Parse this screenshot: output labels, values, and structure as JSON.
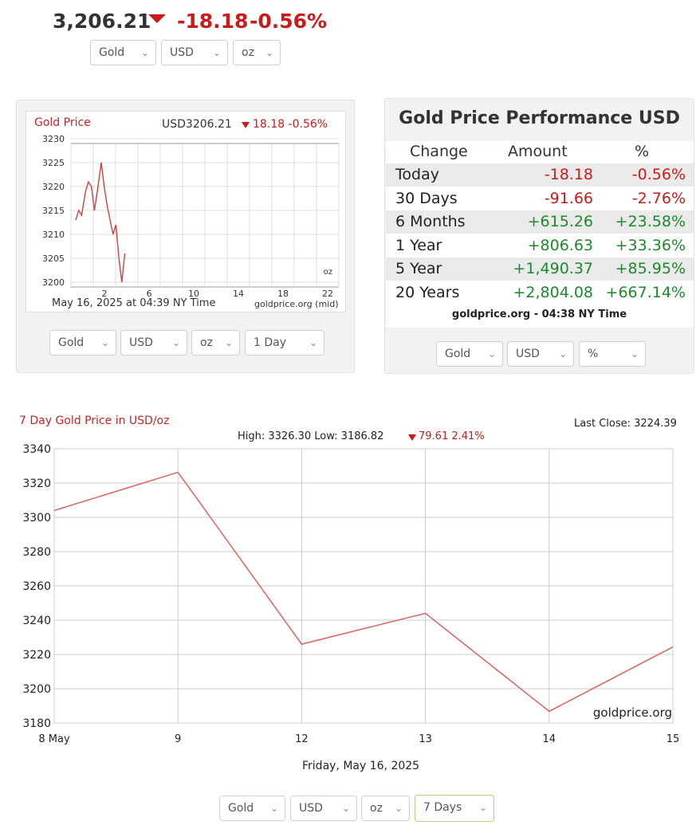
{
  "header": {
    "price": "3,206.21",
    "change": "-18.18",
    "change_pct": "-0.56%",
    "selects": [
      "Gold",
      "USD",
      "oz"
    ]
  },
  "small_chart": {
    "title": "Gold Price",
    "price_label": "USD3206.21",
    "change_label": "18.18 -0.56%",
    "unit": "oz",
    "footer_date": "May 16, 2025 at 04:39 NY Time",
    "footer_source": "goldprice.org (mid)",
    "selects": [
      "Gold",
      "USD",
      "oz",
      "1 Day"
    ],
    "y_ticks": [
      "3230",
      "3225",
      "3220",
      "3215",
      "3210",
      "3205",
      "3200"
    ],
    "x_ticks": [
      "2",
      "6",
      "10",
      "14",
      "18",
      "22"
    ]
  },
  "performance": {
    "title": "Gold Price Performance USD",
    "headers": [
      "Change",
      "Amount",
      "%"
    ],
    "rows": [
      {
        "label": "Today",
        "amount": "-18.18",
        "pct": "-0.56%",
        "dir": "down"
      },
      {
        "label": "30 Days",
        "amount": "-91.66",
        "pct": "-2.76%",
        "dir": "down"
      },
      {
        "label": "6 Months",
        "amount": "+615.26",
        "pct": "+23.58%",
        "dir": "up"
      },
      {
        "label": "1 Year",
        "amount": "+806.63",
        "pct": "+33.36%",
        "dir": "up"
      },
      {
        "label": "5 Year",
        "amount": "+1,490.37",
        "pct": "+85.95%",
        "dir": "up"
      },
      {
        "label": "20 Years",
        "amount": "+2,804.08",
        "pct": "+667.14%",
        "dir": "up"
      }
    ],
    "footer": "goldprice.org - 04:38 NY Time",
    "selects": [
      "Gold",
      "USD",
      "%"
    ]
  },
  "big_chart": {
    "selects": [
      "Gold",
      "USD",
      "oz",
      "7 Days"
    ]
  },
  "chart_data": {
    "type": "line",
    "title": "7 Day Gold Price in USD/oz",
    "subtitle_left": "High: 3326.30 Low: 3186.82",
    "subtitle_change": "79.61 2.41%",
    "last_close": "Last Close: 3224.39",
    "xlabel": "Friday, May 16, 2025",
    "ylabel": "",
    "watermark": "goldprice.org",
    "categories": [
      "8 May",
      "9",
      "12",
      "13",
      "14",
      "15"
    ],
    "values": [
      3304,
      3326.3,
      3226,
      3244,
      3186.82,
      3224.39
    ],
    "y_ticks": [
      3340,
      3320,
      3300,
      3280,
      3260,
      3240,
      3220,
      3200,
      3180
    ],
    "ylim": [
      3180,
      3340
    ],
    "grid": true,
    "line_color": "#e06060"
  },
  "colors": {
    "down": "#cc1a1a",
    "up": "#1a8a2a"
  }
}
